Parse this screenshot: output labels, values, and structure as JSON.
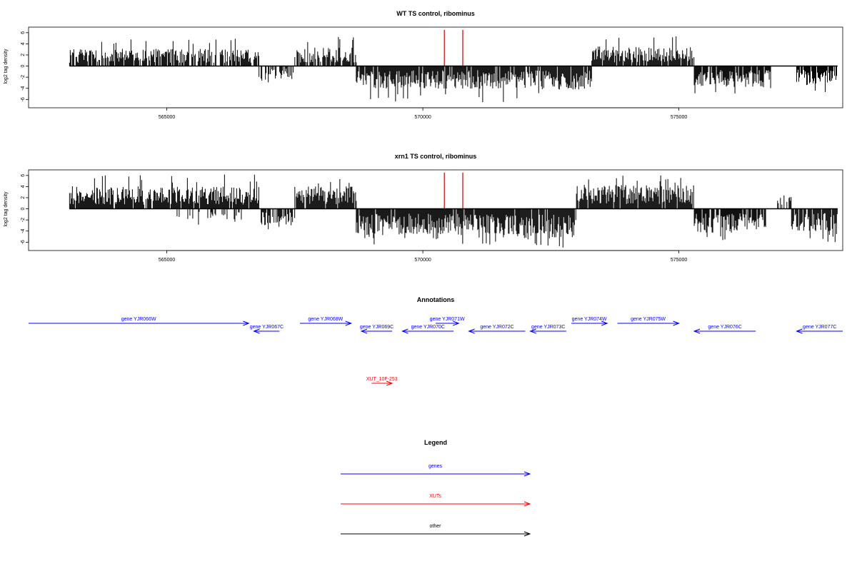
{
  "chart_data": [
    {
      "type": "bar",
      "title": "WT TS control, ribominus",
      "ylabel": "log2 tag density",
      "xlim": [
        562300,
        578200
      ],
      "ylim": [
        -7.5,
        7
      ],
      "x_ticks": [
        565000,
        570000,
        575000
      ],
      "x_tick_labels": [
        "565000",
        "570000",
        "575000"
      ],
      "y_ticks": [
        -6,
        -4,
        -2,
        0,
        2,
        4,
        6
      ],
      "y_tick_labels": [
        "-6",
        "-4",
        "-2",
        "0",
        "2",
        "4",
        "6"
      ],
      "grid": false,
      "colors": {
        "bars": "#000000",
        "highlight": "#cc0000"
      },
      "highlights": [
        {
          "x": 570420,
          "y": 6.5
        },
        {
          "x": 570780,
          "y": 6.5
        }
      ],
      "segments": [
        {
          "x0": 563100,
          "x1": 566800,
          "sign": 1,
          "amp": 2.3,
          "max": 5.2,
          "density": 0.75
        },
        {
          "x0": 566800,
          "x1": 567500,
          "sign": -1,
          "amp": 1.8,
          "max": 3.2,
          "density": 0.6
        },
        {
          "x0": 567500,
          "x1": 568700,
          "sign": 1,
          "amp": 2.5,
          "max": 5.4,
          "density": 0.85
        },
        {
          "x0": 568700,
          "x1": 571900,
          "sign": -1,
          "amp": 3.0,
          "max": 6.5,
          "density": 0.92
        },
        {
          "x0": 571900,
          "x1": 573300,
          "sign": -1,
          "amp": 3.2,
          "max": 5.0,
          "density": 0.9
        },
        {
          "x0": 573300,
          "x1": 575300,
          "sign": 1,
          "amp": 2.6,
          "max": 5.5,
          "density": 0.88
        },
        {
          "x0": 575300,
          "x1": 576800,
          "sign": -1,
          "amp": 2.8,
          "max": 5.0,
          "density": 0.85
        },
        {
          "x0": 576800,
          "x1": 577300,
          "sign": 0,
          "amp": 0,
          "max": 0,
          "density": 0
        },
        {
          "x0": 577300,
          "x1": 578100,
          "sign": -1,
          "amp": 2.6,
          "max": 5.0,
          "density": 0.85
        }
      ]
    },
    {
      "type": "bar",
      "title": "xrn1 TS control, ribominus",
      "ylabel": "log2 tag density",
      "xlim": [
        562300,
        578200
      ],
      "ylim": [
        -7.5,
        7
      ],
      "x_ticks": [
        565000,
        570000,
        575000
      ],
      "x_tick_labels": [
        "565000",
        "570000",
        "575000"
      ],
      "y_ticks": [
        -6,
        -4,
        -2,
        0,
        2,
        4,
        6
      ],
      "y_tick_labels": [
        "-6",
        "-4",
        "-2",
        "0",
        "2",
        "4",
        "6"
      ],
      "grid": false,
      "colors": {
        "bars": "#000000",
        "highlight": "#cc0000"
      },
      "highlights": [
        {
          "x": 570420,
          "y": 6.5
        },
        {
          "x": 570780,
          "y": 6.5
        }
      ],
      "segments": [
        {
          "x0": 563100,
          "x1": 566800,
          "sign": 1,
          "amp": 3.0,
          "max": 6.3,
          "density": 0.95
        },
        {
          "x0": 565200,
          "x1": 566500,
          "sign": -1,
          "amp": 1.5,
          "max": 3.0,
          "density": 0.25
        },
        {
          "x0": 566800,
          "x1": 567500,
          "sign": -1,
          "amp": 2.2,
          "max": 4.3,
          "density": 0.8
        },
        {
          "x0": 567500,
          "x1": 568700,
          "sign": 1,
          "amp": 3.0,
          "max": 5.5,
          "density": 0.95
        },
        {
          "x0": 568700,
          "x1": 571900,
          "sign": -1,
          "amp": 3.5,
          "max": 6.5,
          "density": 0.97
        },
        {
          "x0": 571900,
          "x1": 573000,
          "sign": -1,
          "amp": 4.0,
          "max": 7.0,
          "density": 0.97
        },
        {
          "x0": 573000,
          "x1": 575300,
          "sign": 1,
          "amp": 3.2,
          "max": 6.0,
          "density": 0.95
        },
        {
          "x0": 575300,
          "x1": 576700,
          "sign": -1,
          "amp": 3.2,
          "max": 6.0,
          "density": 0.9
        },
        {
          "x0": 576700,
          "x1": 577200,
          "sign": 0,
          "amp": 0,
          "max": 0,
          "density": 0
        },
        {
          "x0": 576900,
          "x1": 577200,
          "sign": 1,
          "amp": 1.8,
          "max": 3.0,
          "density": 0.5
        },
        {
          "x0": 577200,
          "x1": 578100,
          "sign": -1,
          "amp": 3.0,
          "max": 6.0,
          "density": 0.9
        }
      ]
    }
  ],
  "annotations": {
    "title": "Annotations",
    "genes": [
      {
        "label": "gene YJR066W",
        "start": 562300,
        "end": 566600,
        "strand": "+",
        "row": 0
      },
      {
        "label": "gene YJR067C",
        "start": 566700,
        "end": 567200,
        "strand": "-",
        "row": 1
      },
      {
        "label": "gene YJR068W",
        "start": 567600,
        "end": 568600,
        "strand": "+",
        "row": 0
      },
      {
        "label": "gene YJR069C",
        "start": 568800,
        "end": 569400,
        "strand": "-",
        "row": 1
      },
      {
        "label": "gene YJR070C",
        "start": 569600,
        "end": 570600,
        "strand": "-",
        "row": 1
      },
      {
        "label": "gene YJR071W",
        "start": 570250,
        "end": 570700,
        "strand": "+",
        "row": 0
      },
      {
        "label": "gene YJR072C",
        "start": 570900,
        "end": 572000,
        "strand": "-",
        "row": 1
      },
      {
        "label": "gene YJR073C",
        "start": 572100,
        "end": 572800,
        "strand": "-",
        "row": 1
      },
      {
        "label": "gene YJR074W",
        "start": 572900,
        "end": 573600,
        "strand": "+",
        "row": 0
      },
      {
        "label": "gene YJR075W",
        "start": 573800,
        "end": 575000,
        "strand": "+",
        "row": 0
      },
      {
        "label": "gene YJR076C",
        "start": 575300,
        "end": 576500,
        "strand": "-",
        "row": 1
      },
      {
        "label": "gene YJR077C",
        "start": 577300,
        "end": 578200,
        "strand": "-",
        "row": 1
      }
    ],
    "xuts": [
      {
        "label": "XUT_10F-253",
        "start": 569000,
        "end": 569400,
        "strand": "+",
        "row": 2
      }
    ]
  },
  "legend": {
    "title": "Legend",
    "items": [
      {
        "label": "genes",
        "color": "#0000ff"
      },
      {
        "label": "XUTs",
        "color": "#ff0000"
      },
      {
        "label": "other",
        "color": "#000000"
      }
    ]
  },
  "colors": {
    "gene": "#0000ff",
    "xut": "#ff0000",
    "other": "#000000"
  }
}
